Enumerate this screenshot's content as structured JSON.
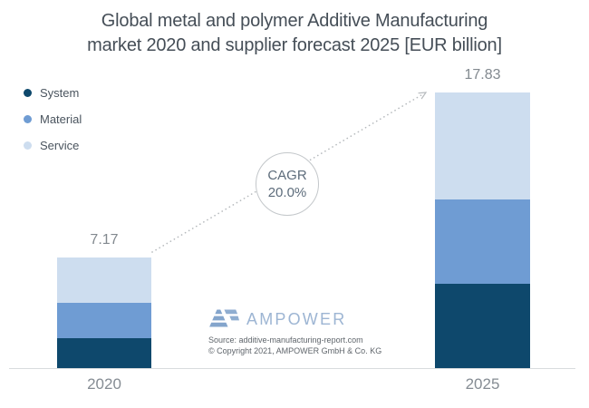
{
  "title": {
    "line1": "Global metal and polymer Additive Manufacturing",
    "line2": "market 2020 and supplier forecast 2025 [EUR billion]"
  },
  "legend": {
    "items": [
      {
        "label": "System",
        "color": "#0e486c"
      },
      {
        "label": "Material",
        "color": "#6f9cd3"
      },
      {
        "label": "Service",
        "color": "#cdddef"
      }
    ]
  },
  "chart_data": {
    "type": "bar",
    "stacked": true,
    "title": "Global metal and polymer Additive Manufacturing market 2020 and supplier forecast 2025 [EUR billion]",
    "unit": "EUR billion",
    "categories": [
      "2020",
      "2025"
    ],
    "series": [
      {
        "name": "System",
        "color": "#0e486c",
        "values": [
          1.93,
          5.45
        ]
      },
      {
        "name": "Material",
        "color": "#6f9cd3",
        "values": [
          2.28,
          5.45
        ]
      },
      {
        "name": "Service",
        "color": "#cdddef",
        "values": [
          2.96,
          6.93
        ]
      }
    ],
    "totals": [
      7.17,
      17.83
    ],
    "totals_labels": [
      "7.17",
      "17.83"
    ],
    "annotation": {
      "line1": "CAGR",
      "line2": "20.0%"
    },
    "legend_position": "top-left",
    "grid": false,
    "ylim": [
      0,
      18
    ]
  },
  "logo": {
    "text": "AMPOWER"
  },
  "source": {
    "line1": "Source: additive-manufacturing-report.com",
    "line2": "© Copyright 2021, AMPOWER GmbH & Co. KG"
  },
  "colors": {
    "title_text": "#454e57",
    "value_label_text": "#82898f",
    "axis_label_text": "#858c93",
    "axis_line": "#d8dbde",
    "arrow": "#b6babd",
    "cagr_text": "#5d6c7b",
    "circle_border": "#c3c7ca",
    "logo_blue": "#9db5d3",
    "logo_icon_blue": "#84a5cc",
    "source_text": "#5f656b"
  }
}
